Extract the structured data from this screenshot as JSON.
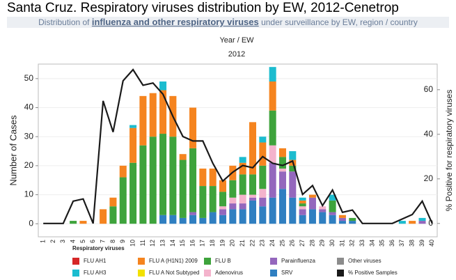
{
  "chart_data": {
    "type": "stacked_bar_line",
    "title": "Santa Cruz. Respiratory viruses distribution by EW, 2012-Cenetrop",
    "subtitle": [
      "Distribution of",
      "influenza and other respiratory viruses",
      "under surveillance by EW, region / country"
    ],
    "x_label": "Year  /  EW",
    "x_group": "2012",
    "y_label": "Number of Cases",
    "y2_label": "% Positive for respiratory viruses",
    "legend_title": "Respiratory viruses",
    "categories": [
      "1",
      "2",
      "3",
      "4",
      "5",
      "6",
      "7",
      "8",
      "9",
      "10",
      "11",
      "12",
      "13",
      "14",
      "15",
      "16",
      "17",
      "18",
      "19",
      "20",
      "21",
      "22",
      "23",
      "24",
      "25",
      "26",
      "27",
      "28",
      "29",
      "30",
      "31",
      "32",
      "33",
      "34",
      "35",
      "36",
      "37",
      "38",
      "39",
      "40"
    ],
    "ylim": [
      -4.5,
      55
    ],
    "yticks": [
      0,
      10,
      20,
      30,
      40,
      50
    ],
    "y2lim": [
      -6,
      71.5
    ],
    "y2ticks": [
      0,
      20,
      40,
      60
    ],
    "grid": true,
    "series": [
      {
        "name": "SRV",
        "color": "#2f7fc1",
        "values": [
          0,
          0,
          0,
          0,
          0,
          0,
          0,
          0,
          0,
          0,
          0,
          0,
          3,
          3,
          2,
          3,
          2,
          4,
          3,
          5,
          5,
          8,
          6,
          9,
          12,
          9,
          3,
          5,
          4,
          3,
          1,
          1,
          0,
          0,
          0,
          0,
          0,
          0,
          0,
          0
        ]
      },
      {
        "name": "Parainfluenza",
        "color": "#9467bd",
        "values": [
          0,
          0,
          0,
          0,
          0,
          0,
          0,
          0,
          0,
          0,
          0,
          0,
          0,
          0,
          0,
          1,
          0,
          0,
          2,
          2,
          2,
          1,
          3,
          12,
          6,
          9,
          2,
          4,
          1,
          1,
          1,
          0,
          0,
          0,
          0,
          0,
          0,
          0,
          1,
          0
        ]
      },
      {
        "name": "Adenovirus",
        "color": "#f4b3cc",
        "values": [
          0,
          0,
          0,
          0,
          0,
          0,
          0,
          0,
          0,
          0,
          0,
          0,
          0,
          0,
          0,
          0,
          0,
          0,
          1,
          2,
          3,
          1,
          3,
          6,
          1,
          0,
          1,
          0,
          1,
          0,
          0,
          0,
          0,
          0,
          0,
          0,
          0,
          0,
          0,
          0
        ]
      },
      {
        "name": "FLU B",
        "color": "#3ea33c",
        "values": [
          0,
          0,
          0,
          1,
          0,
          0,
          0,
          6,
          16,
          21,
          27,
          30,
          28,
          27,
          20,
          22,
          11,
          9,
          5,
          6,
          7,
          7,
          8,
          12,
          4,
          2,
          1,
          0,
          0,
          4,
          0,
          1,
          0,
          0,
          0,
          0,
          0,
          0,
          0,
          0
        ]
      },
      {
        "name": "FLU A (H1N1) 2009",
        "color": "#f5841f",
        "values": [
          0,
          0,
          0,
          0,
          1,
          0,
          5,
          3,
          4,
          12,
          17,
          15,
          15,
          14,
          2,
          14,
          6,
          6,
          4,
          5,
          4,
          18,
          8,
          10,
          3,
          2,
          1,
          1,
          0,
          0,
          1,
          0,
          0,
          0,
          0,
          0,
          0,
          1,
          0,
          0
        ]
      },
      {
        "name": "FLU AH3",
        "color": "#1cbccf",
        "values": [
          0,
          0,
          0,
          0,
          0,
          0,
          0,
          0,
          0,
          1,
          0,
          0,
          3,
          0,
          0,
          0,
          0,
          0,
          0,
          0,
          2,
          0,
          2,
          5,
          0,
          3,
          1,
          0,
          0,
          2,
          0,
          0,
          0,
          0,
          0,
          0,
          1,
          0,
          1,
          0
        ]
      },
      {
        "name": "FLU AH1",
        "color": "#d62728",
        "values": [
          0,
          0,
          0,
          0,
          0,
          0,
          0,
          0,
          0,
          0,
          0,
          0,
          0,
          0,
          0,
          0,
          0,
          0,
          0,
          0,
          0,
          0,
          0,
          0,
          0,
          0,
          0,
          0,
          0,
          0,
          0,
          0,
          0,
          0,
          0,
          0,
          0,
          0,
          0,
          0
        ]
      },
      {
        "name": "FLU A Not Subtyped",
        "color": "#f2e100",
        "values": [
          0,
          0,
          0,
          0,
          0,
          0,
          0,
          0,
          0,
          0,
          0,
          0,
          0,
          0,
          0,
          0,
          0,
          0,
          0,
          0,
          0,
          0,
          0,
          0,
          0,
          0,
          0,
          0,
          0,
          0,
          0,
          0,
          0,
          0,
          0,
          0,
          0,
          0,
          0,
          0
        ]
      },
      {
        "name": "Other viruses",
        "color": "#8c8c8c",
        "values": [
          0,
          0,
          0,
          0,
          0,
          0,
          0,
          0,
          0,
          0,
          0,
          0,
          0,
          0,
          0,
          0,
          0,
          0,
          0,
          0,
          0,
          0,
          0,
          0,
          0,
          0,
          0,
          0,
          0,
          0,
          0,
          0,
          0,
          0,
          0,
          0,
          0,
          0,
          0,
          0
        ]
      },
      {
        "name": "% Positive Samples",
        "color": "#1a1a1a",
        "axis": "y2",
        "values": [
          0,
          0,
          0,
          10,
          11,
          0,
          55,
          41,
          64,
          69,
          62,
          63,
          58,
          48,
          39,
          37,
          37,
          27,
          19,
          23,
          26,
          25,
          30,
          27,
          26,
          28,
          13,
          17,
          8,
          15,
          5,
          6,
          0,
          0,
          0,
          0,
          2,
          4,
          10,
          0
        ]
      }
    ]
  }
}
